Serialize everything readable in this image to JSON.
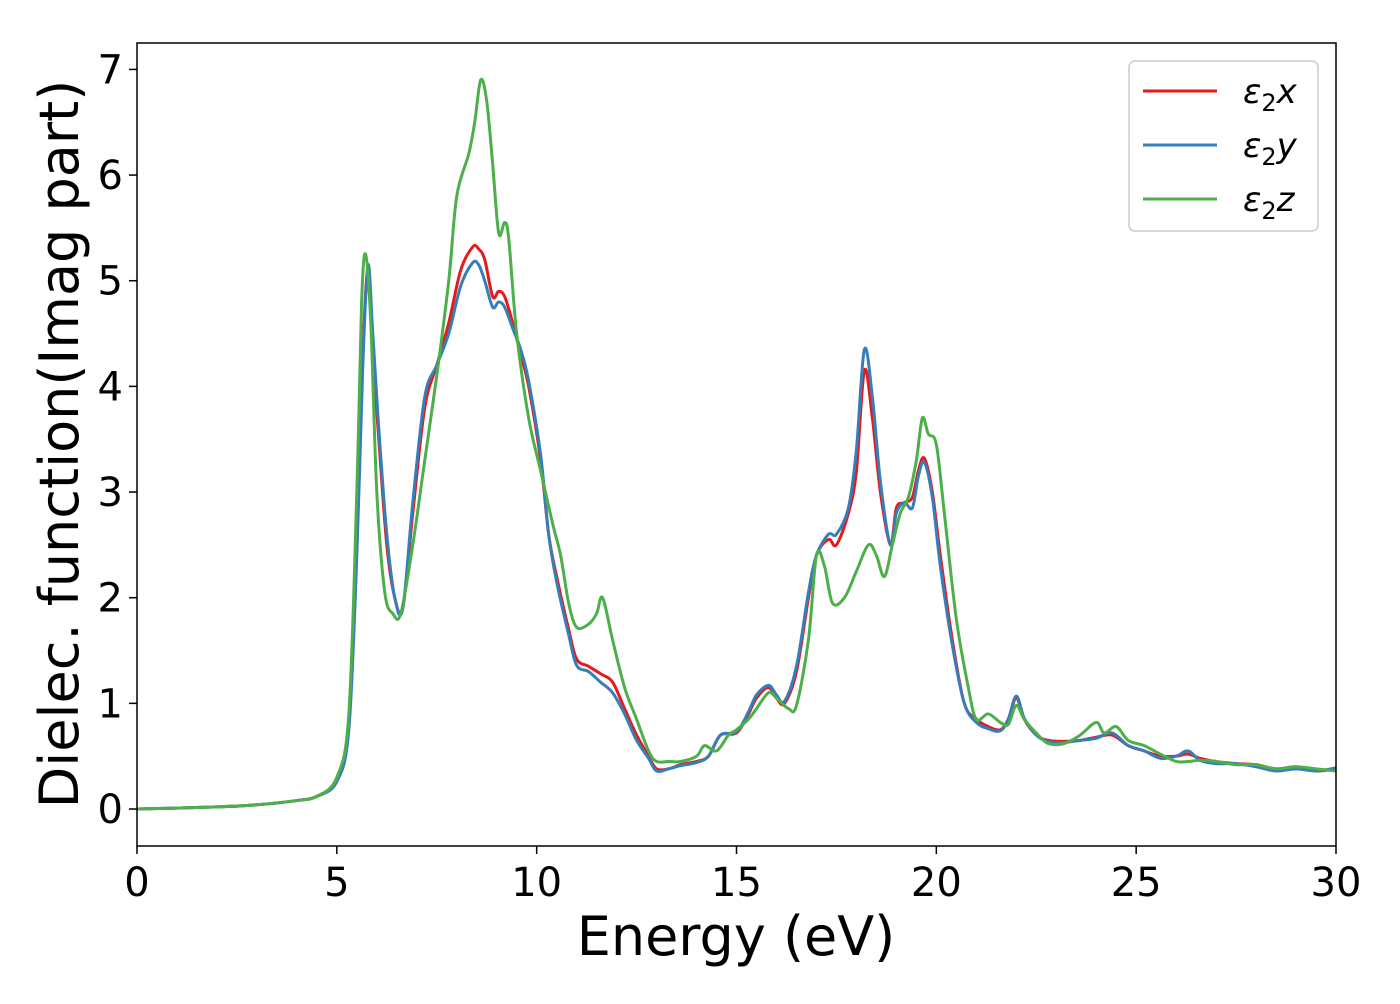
{
  "chart_data": {
    "type": "line",
    "xlabel": "Energy (eV)",
    "ylabel": "Dielec. function(Imag part)",
    "xlim": [
      0,
      30
    ],
    "ylim": [
      -0.35,
      7.25
    ],
    "xticks": [
      0,
      5,
      10,
      15,
      20,
      25,
      30
    ],
    "xtick_labels": [
      "0",
      "5",
      "10",
      "15",
      "20",
      "25",
      "30"
    ],
    "yticks": [
      0,
      1,
      2,
      3,
      4,
      5,
      6,
      7
    ],
    "ytick_labels": [
      "0",
      "1",
      "2",
      "3",
      "4",
      "5",
      "6",
      "7"
    ],
    "grid": false,
    "legend_position": "top-right",
    "series": [
      {
        "name": "ε₂x",
        "legend_main": "ε",
        "legend_sub": "2",
        "legend_tail": "x",
        "color": "#e41a1c",
        "x": [
          0,
          2,
          3,
          4,
          4.5,
          5.0,
          5.3,
          5.5,
          5.65,
          5.78,
          5.9,
          6.05,
          6.25,
          6.45,
          6.65,
          6.9,
          7.2,
          7.5,
          7.8,
          8.1,
          8.4,
          8.55,
          8.7,
          8.9,
          9.05,
          9.2,
          9.4,
          9.6,
          9.8,
          10.1,
          10.3,
          10.5,
          10.8,
          11.0,
          11.3,
          11.6,
          11.9,
          12.2,
          12.5,
          12.8,
          13.0,
          13.3,
          13.6,
          14.0,
          14.3,
          14.6,
          15.0,
          15.3,
          15.5,
          15.8,
          16.0,
          16.2,
          16.5,
          16.8,
          17.0,
          17.3,
          17.5,
          17.8,
          18.0,
          18.2,
          18.4,
          18.6,
          18.85,
          19.0,
          19.2,
          19.4,
          19.55,
          19.7,
          19.9,
          20.1,
          20.4,
          20.7,
          21.0,
          21.3,
          21.6,
          21.8,
          22.0,
          22.2,
          22.5,
          22.8,
          23.2,
          23.6,
          24.0,
          24.4,
          24.8,
          25.2,
          25.6,
          26.0,
          26.3,
          26.6,
          27.0,
          27.5,
          28.0,
          28.5,
          29.0,
          29.5,
          30.0
        ],
        "y": [
          0.0,
          0.02,
          0.04,
          0.08,
          0.12,
          0.28,
          0.8,
          2.5,
          4.3,
          5.1,
          4.3,
          3.5,
          2.5,
          2.0,
          1.9,
          2.8,
          3.8,
          4.2,
          4.6,
          5.1,
          5.32,
          5.3,
          5.2,
          4.85,
          4.9,
          4.85,
          4.6,
          4.3,
          4.0,
          3.3,
          2.6,
          2.2,
          1.7,
          1.42,
          1.35,
          1.28,
          1.2,
          0.95,
          0.7,
          0.5,
          0.38,
          0.38,
          0.42,
          0.45,
          0.5,
          0.7,
          0.72,
          0.9,
          1.05,
          1.15,
          1.05,
          1.0,
          1.3,
          2.0,
          2.4,
          2.55,
          2.5,
          2.8,
          3.2,
          4.15,
          3.7,
          3.0,
          2.5,
          2.85,
          2.9,
          2.95,
          3.2,
          3.32,
          3.0,
          2.4,
          1.6,
          1.0,
          0.85,
          0.78,
          0.75,
          0.85,
          1.05,
          0.85,
          0.7,
          0.65,
          0.64,
          0.65,
          0.68,
          0.7,
          0.6,
          0.55,
          0.5,
          0.5,
          0.52,
          0.48,
          0.45,
          0.43,
          0.42,
          0.38,
          0.4,
          0.36,
          0.38
        ]
      },
      {
        "name": "ε₂y",
        "legend_main": "ε",
        "legend_sub": "2",
        "legend_tail": "y",
        "color": "#377eb8",
        "x": [
          0,
          2,
          3,
          4,
          4.5,
          5.0,
          5.3,
          5.5,
          5.65,
          5.78,
          5.9,
          6.05,
          6.25,
          6.45,
          6.65,
          6.9,
          7.2,
          7.5,
          7.8,
          8.1,
          8.4,
          8.55,
          8.7,
          8.9,
          9.05,
          9.2,
          9.4,
          9.6,
          9.8,
          10.1,
          10.3,
          10.5,
          10.8,
          11.0,
          11.3,
          11.6,
          11.9,
          12.2,
          12.5,
          12.8,
          13.0,
          13.3,
          13.6,
          14.0,
          14.3,
          14.6,
          15.0,
          15.3,
          15.5,
          15.8,
          16.0,
          16.2,
          16.5,
          16.8,
          17.0,
          17.3,
          17.5,
          17.8,
          18.0,
          18.2,
          18.4,
          18.6,
          18.85,
          19.0,
          19.2,
          19.4,
          19.55,
          19.7,
          19.9,
          20.1,
          20.4,
          20.7,
          21.0,
          21.3,
          21.6,
          21.8,
          22.0,
          22.2,
          22.5,
          22.8,
          23.2,
          23.6,
          24.0,
          24.4,
          24.8,
          25.2,
          25.6,
          26.0,
          26.3,
          26.6,
          27.0,
          27.5,
          28.0,
          28.5,
          29.0,
          29.5,
          30.0
        ],
        "y": [
          0.0,
          0.02,
          0.04,
          0.08,
          0.12,
          0.26,
          0.75,
          2.4,
          4.2,
          5.15,
          4.5,
          3.6,
          2.6,
          2.0,
          1.9,
          2.9,
          3.9,
          4.2,
          4.5,
          4.95,
          5.17,
          5.15,
          5.0,
          4.75,
          4.8,
          4.75,
          4.55,
          4.35,
          4.05,
          3.35,
          2.6,
          2.15,
          1.65,
          1.36,
          1.3,
          1.2,
          1.1,
          0.9,
          0.65,
          0.48,
          0.36,
          0.38,
          0.41,
          0.44,
          0.5,
          0.7,
          0.73,
          0.92,
          1.08,
          1.17,
          1.08,
          1.02,
          1.35,
          2.05,
          2.4,
          2.6,
          2.6,
          2.85,
          3.4,
          4.35,
          3.9,
          3.1,
          2.5,
          2.8,
          2.9,
          2.85,
          3.15,
          3.28,
          2.95,
          2.3,
          1.55,
          1.0,
          0.82,
          0.76,
          0.74,
          0.85,
          1.07,
          0.86,
          0.7,
          0.64,
          0.63,
          0.65,
          0.67,
          0.72,
          0.6,
          0.55,
          0.48,
          0.5,
          0.55,
          0.46,
          0.43,
          0.43,
          0.4,
          0.36,
          0.38,
          0.36,
          0.39
        ]
      },
      {
        "name": "ε₂z",
        "legend_main": "ε",
        "legend_sub": "2",
        "legend_tail": "z",
        "color": "#4daf4a",
        "x": [
          0,
          2,
          3,
          4,
          4.5,
          5.0,
          5.3,
          5.5,
          5.62,
          5.72,
          5.85,
          6.0,
          6.2,
          6.4,
          6.6,
          6.9,
          7.2,
          7.5,
          7.8,
          8.0,
          8.3,
          8.45,
          8.6,
          8.75,
          8.9,
          9.05,
          9.2,
          9.3,
          9.5,
          9.8,
          10.1,
          10.4,
          10.6,
          10.8,
          11.0,
          11.3,
          11.5,
          11.65,
          11.9,
          12.2,
          12.5,
          12.8,
          13.0,
          13.3,
          13.6,
          14.0,
          14.2,
          14.5,
          14.8,
          15.0,
          15.3,
          15.5,
          15.8,
          16.0,
          16.3,
          16.5,
          16.8,
          17.0,
          17.2,
          17.4,
          17.7,
          18.0,
          18.3,
          18.5,
          18.7,
          18.9,
          19.1,
          19.3,
          19.5,
          19.65,
          19.8,
          20.0,
          20.2,
          20.5,
          20.8,
          21.0,
          21.3,
          21.6,
          21.8,
          22.0,
          22.2,
          22.5,
          22.8,
          23.2,
          23.6,
          24.0,
          24.2,
          24.5,
          24.8,
          25.2,
          25.6,
          26.0,
          26.3,
          26.6,
          27.0,
          27.5,
          28.0,
          28.5,
          29.0,
          29.5,
          30.0
        ],
        "y": [
          0.0,
          0.02,
          0.04,
          0.08,
          0.12,
          0.3,
          0.9,
          3.0,
          4.8,
          5.25,
          4.6,
          3.0,
          2.05,
          1.85,
          1.85,
          2.5,
          3.3,
          4.1,
          5.0,
          5.8,
          6.2,
          6.5,
          6.9,
          6.7,
          6.1,
          5.45,
          5.55,
          5.4,
          4.5,
          3.7,
          3.2,
          2.7,
          2.4,
          1.95,
          1.72,
          1.75,
          1.85,
          2.0,
          1.6,
          1.15,
          0.85,
          0.55,
          0.45,
          0.45,
          0.45,
          0.5,
          0.6,
          0.55,
          0.7,
          0.75,
          0.85,
          0.95,
          1.1,
          1.05,
          0.95,
          0.98,
          1.6,
          2.4,
          2.3,
          1.95,
          2.0,
          2.25,
          2.5,
          2.4,
          2.2,
          2.5,
          2.8,
          2.95,
          3.3,
          3.7,
          3.55,
          3.45,
          2.8,
          1.8,
          1.15,
          0.85,
          0.9,
          0.82,
          0.8,
          0.98,
          0.85,
          0.72,
          0.62,
          0.62,
          0.7,
          0.82,
          0.72,
          0.78,
          0.65,
          0.6,
          0.52,
          0.45,
          0.45,
          0.46,
          0.45,
          0.42,
          0.42,
          0.38,
          0.4,
          0.38,
          0.36
        ]
      }
    ]
  }
}
